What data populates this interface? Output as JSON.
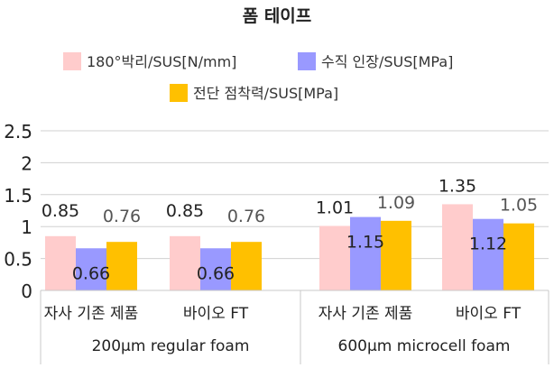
{
  "chart_data": {
    "type": "bar",
    "title": "폼 테이프",
    "groups": [
      {
        "label": "200µm regular foam",
        "categories": [
          "자사 기존 제품",
          "바이오 FT"
        ]
      },
      {
        "label": "600µm microcell foam",
        "categories": [
          "자사 기존 제품",
          "바이오 FT"
        ]
      }
    ],
    "categories": [
      "자사 기존 제품",
      "바이오 FT",
      "자사 기존 제품",
      "바이오 FT"
    ],
    "series": [
      {
        "name": "180°박리/SUS[N/mm]",
        "color": "#ffcccc",
        "values": [
          0.85,
          0.85,
          1.01,
          1.35
        ],
        "labels": [
          "0.85",
          "0.85",
          "1.01",
          "1.35"
        ]
      },
      {
        "name": "수직 인장/SUS[MPa]",
        "color": "#9999ff",
        "values": [
          0.66,
          0.66,
          1.15,
          1.12
        ],
        "labels": [
          "0.66",
          "0.66",
          "1.15",
          "1.12"
        ]
      },
      {
        "name": "전단 점착력/SUS[MPa]",
        "color": "#ffc000",
        "values": [
          0.76,
          0.76,
          1.09,
          1.05
        ],
        "labels": [
          "0.76",
          "0.76",
          "1.09",
          "1.05"
        ]
      }
    ],
    "y_ticks": [
      "0",
      "0.5",
      "1",
      "1.5",
      "2",
      "2.5"
    ],
    "ylim": [
      0,
      2.5
    ],
    "grid": true,
    "legend": "top"
  }
}
